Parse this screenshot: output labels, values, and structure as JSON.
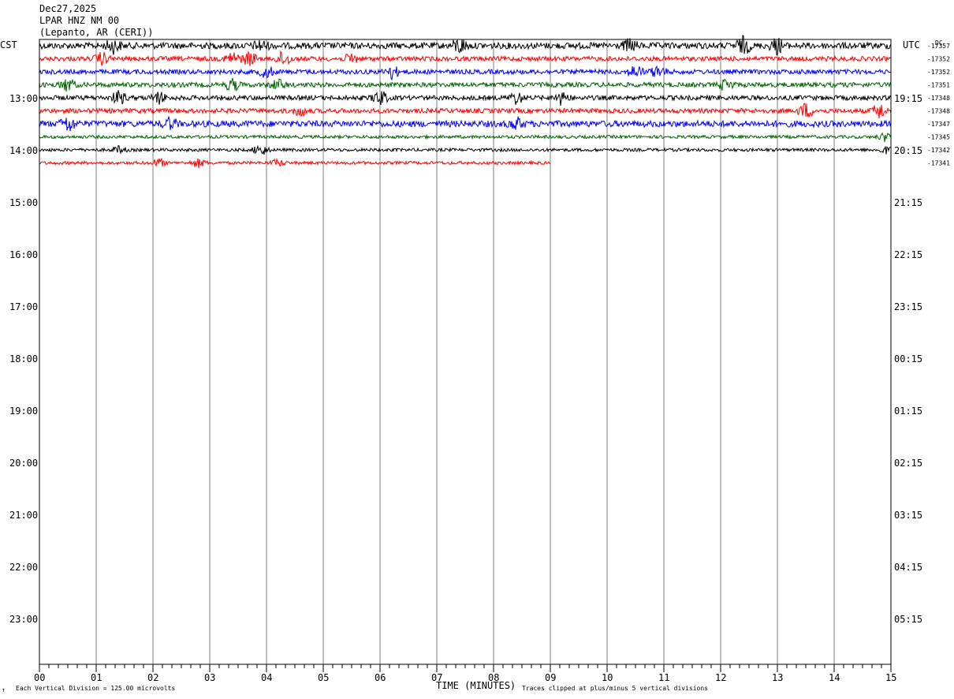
{
  "header": {
    "date": "Dec27,2025",
    "station": "LPAR HNZ NM 00",
    "location": "(Lepanto, AR (CERI))"
  },
  "left_zone": "CST",
  "right_zone": "UTC",
  "right_unit": "DC",
  "footer": {
    "scale_mark": "↑",
    "division": "Each Vertical Division =  125.00 microvolts",
    "clip": "Traces clipped at plus/minus 5 vertical divisions"
  },
  "chart_data": {
    "type": "line",
    "xlabel": "TIME (MINUTES)",
    "x_ticks": [
      "00",
      "01",
      "02",
      "03",
      "04",
      "05",
      "06",
      "07",
      "08",
      "09",
      "10",
      "11",
      "12",
      "13",
      "14",
      "15"
    ],
    "xlim": [
      0,
      15
    ],
    "left_hour_labels": [
      "13:00",
      "14:00",
      "15:00",
      "16:00",
      "17:00",
      "18:00",
      "19:00",
      "20:00",
      "21:00",
      "22:00",
      "23:00"
    ],
    "right_hour_labels": [
      "19:15",
      "20:15",
      "21:15",
      "22:15",
      "23:15",
      "00:15",
      "01:15",
      "02:15",
      "03:15",
      "04:15",
      "05:15"
    ],
    "traces": [
      {
        "color": "#000000",
        "dc": "-17357",
        "end_minute": 15,
        "amplitude": 4,
        "bursts": [
          [
            1.3,
            8
          ],
          [
            3.9,
            6
          ],
          [
            7.4,
            9
          ],
          [
            10.4,
            7
          ],
          [
            12.4,
            10
          ],
          [
            13.0,
            9
          ]
        ]
      },
      {
        "color": "#ff0000",
        "dc": "-17352",
        "end_minute": 15,
        "amplitude": 3,
        "bursts": [
          [
            1.1,
            7
          ],
          [
            3.4,
            8
          ],
          [
            3.7,
            8
          ],
          [
            4.3,
            9
          ],
          [
            5.5,
            6
          ]
        ]
      },
      {
        "color": "#0000ff",
        "dc": "-17352",
        "end_minute": 15,
        "amplitude": 3,
        "bursts": [
          [
            4.0,
            7
          ],
          [
            6.2,
            8
          ],
          [
            10.5,
            8
          ],
          [
            10.9,
            7
          ]
        ]
      },
      {
        "color": "#006400",
        "dc": "-17351",
        "end_minute": 15,
        "amplitude": 3,
        "bursts": [
          [
            0.5,
            8
          ],
          [
            3.4,
            7
          ],
          [
            4.2,
            6
          ],
          [
            12.1,
            7
          ]
        ]
      },
      {
        "color": "#000000",
        "dc": "-17348",
        "end_minute": 15,
        "amplitude": 3,
        "bursts": [
          [
            1.4,
            8
          ],
          [
            2.1,
            7
          ],
          [
            6.0,
            9
          ],
          [
            8.4,
            7
          ],
          [
            9.2,
            8
          ]
        ]
      },
      {
        "color": "#ff0000",
        "dc": "-17348",
        "end_minute": 15,
        "amplitude": 3,
        "bursts": [
          [
            4.6,
            6
          ],
          [
            13.5,
            9
          ],
          [
            14.8,
            9
          ]
        ]
      },
      {
        "color": "#0000ff",
        "dc": "-17347",
        "end_minute": 15,
        "amplitude": 4,
        "bursts": [
          [
            0.5,
            9
          ],
          [
            8.4,
            7
          ],
          [
            2.3,
            6
          ]
        ]
      },
      {
        "color": "#006400",
        "dc": "-17345",
        "end_minute": 15,
        "amplitude": 2,
        "bursts": [
          [
            14.9,
            5
          ]
        ]
      },
      {
        "color": "#000000",
        "dc": "-17342",
        "end_minute": 15,
        "amplitude": 2,
        "bursts": [
          [
            3.9,
            7
          ],
          [
            1.4,
            4
          ],
          [
            14.9,
            4
          ]
        ]
      },
      {
        "color": "#ff0000",
        "dc": "-17341",
        "end_minute": 9,
        "amplitude": 2,
        "bursts": [
          [
            2.1,
            5
          ],
          [
            2.8,
            5
          ],
          [
            4.2,
            4
          ]
        ]
      }
    ]
  }
}
